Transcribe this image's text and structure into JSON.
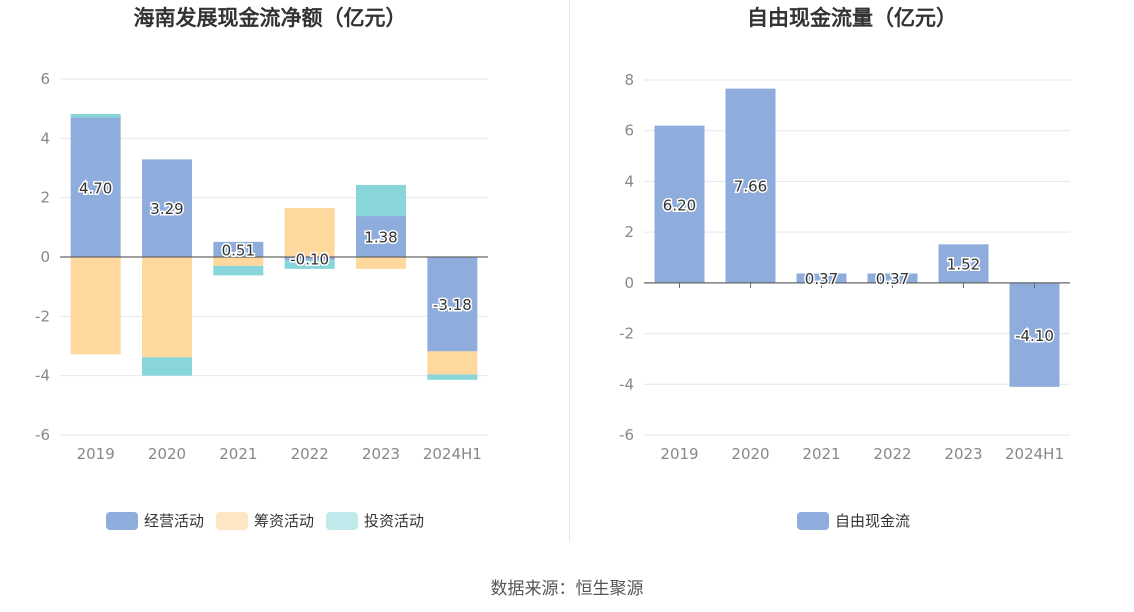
{
  "colors": {
    "operating": "#8eacdc",
    "financing": "#fed89d",
    "investing": "#88d6d9",
    "free": "#8eacdc"
  },
  "source": "数据来源：恒生聚源",
  "chart_data": [
    {
      "type": "bar",
      "stacked": true,
      "title": "海南发展现金流净额（亿元）",
      "categories": [
        "2019",
        "2020",
        "2021",
        "2022",
        "2023",
        "2024H1"
      ],
      "ylim": [
        -6,
        6
      ],
      "yticks": [
        -6,
        -4,
        -2,
        0,
        2,
        4,
        6
      ],
      "grid": true,
      "legend_position": "bottom",
      "series": [
        {
          "name": "经营活动",
          "values": [
            4.7,
            3.29,
            0.51,
            -0.1,
            1.38,
            -3.18
          ],
          "labeled": true
        },
        {
          "name": "筹资活动",
          "values": [
            -3.28,
            -3.38,
            -0.3,
            1.65,
            -0.4,
            -0.78
          ],
          "labeled": false
        },
        {
          "name": "投资活动",
          "values": [
            0.12,
            -0.62,
            -0.32,
            -0.3,
            1.05,
            -0.18
          ],
          "labeled": false
        }
      ],
      "data_labels": [
        "4.70",
        "3.29",
        "0.51",
        "-0.10",
        "1.38",
        "-3.18"
      ]
    },
    {
      "type": "bar",
      "title": "自由现金流量（亿元）",
      "categories": [
        "2019",
        "2020",
        "2021",
        "2022",
        "2023",
        "2024H1"
      ],
      "ylim": [
        -6,
        8
      ],
      "yticks": [
        -6,
        -4,
        -2,
        0,
        2,
        4,
        6,
        8
      ],
      "grid": true,
      "legend_position": "bottom",
      "series": [
        {
          "name": "自由现金流",
          "values": [
            6.2,
            7.66,
            0.37,
            0.37,
            1.52,
            -4.1
          ]
        }
      ],
      "data_labels": [
        "6.20",
        "7.66",
        "0.37",
        "0.37",
        "1.52",
        "-4.10"
      ]
    }
  ]
}
